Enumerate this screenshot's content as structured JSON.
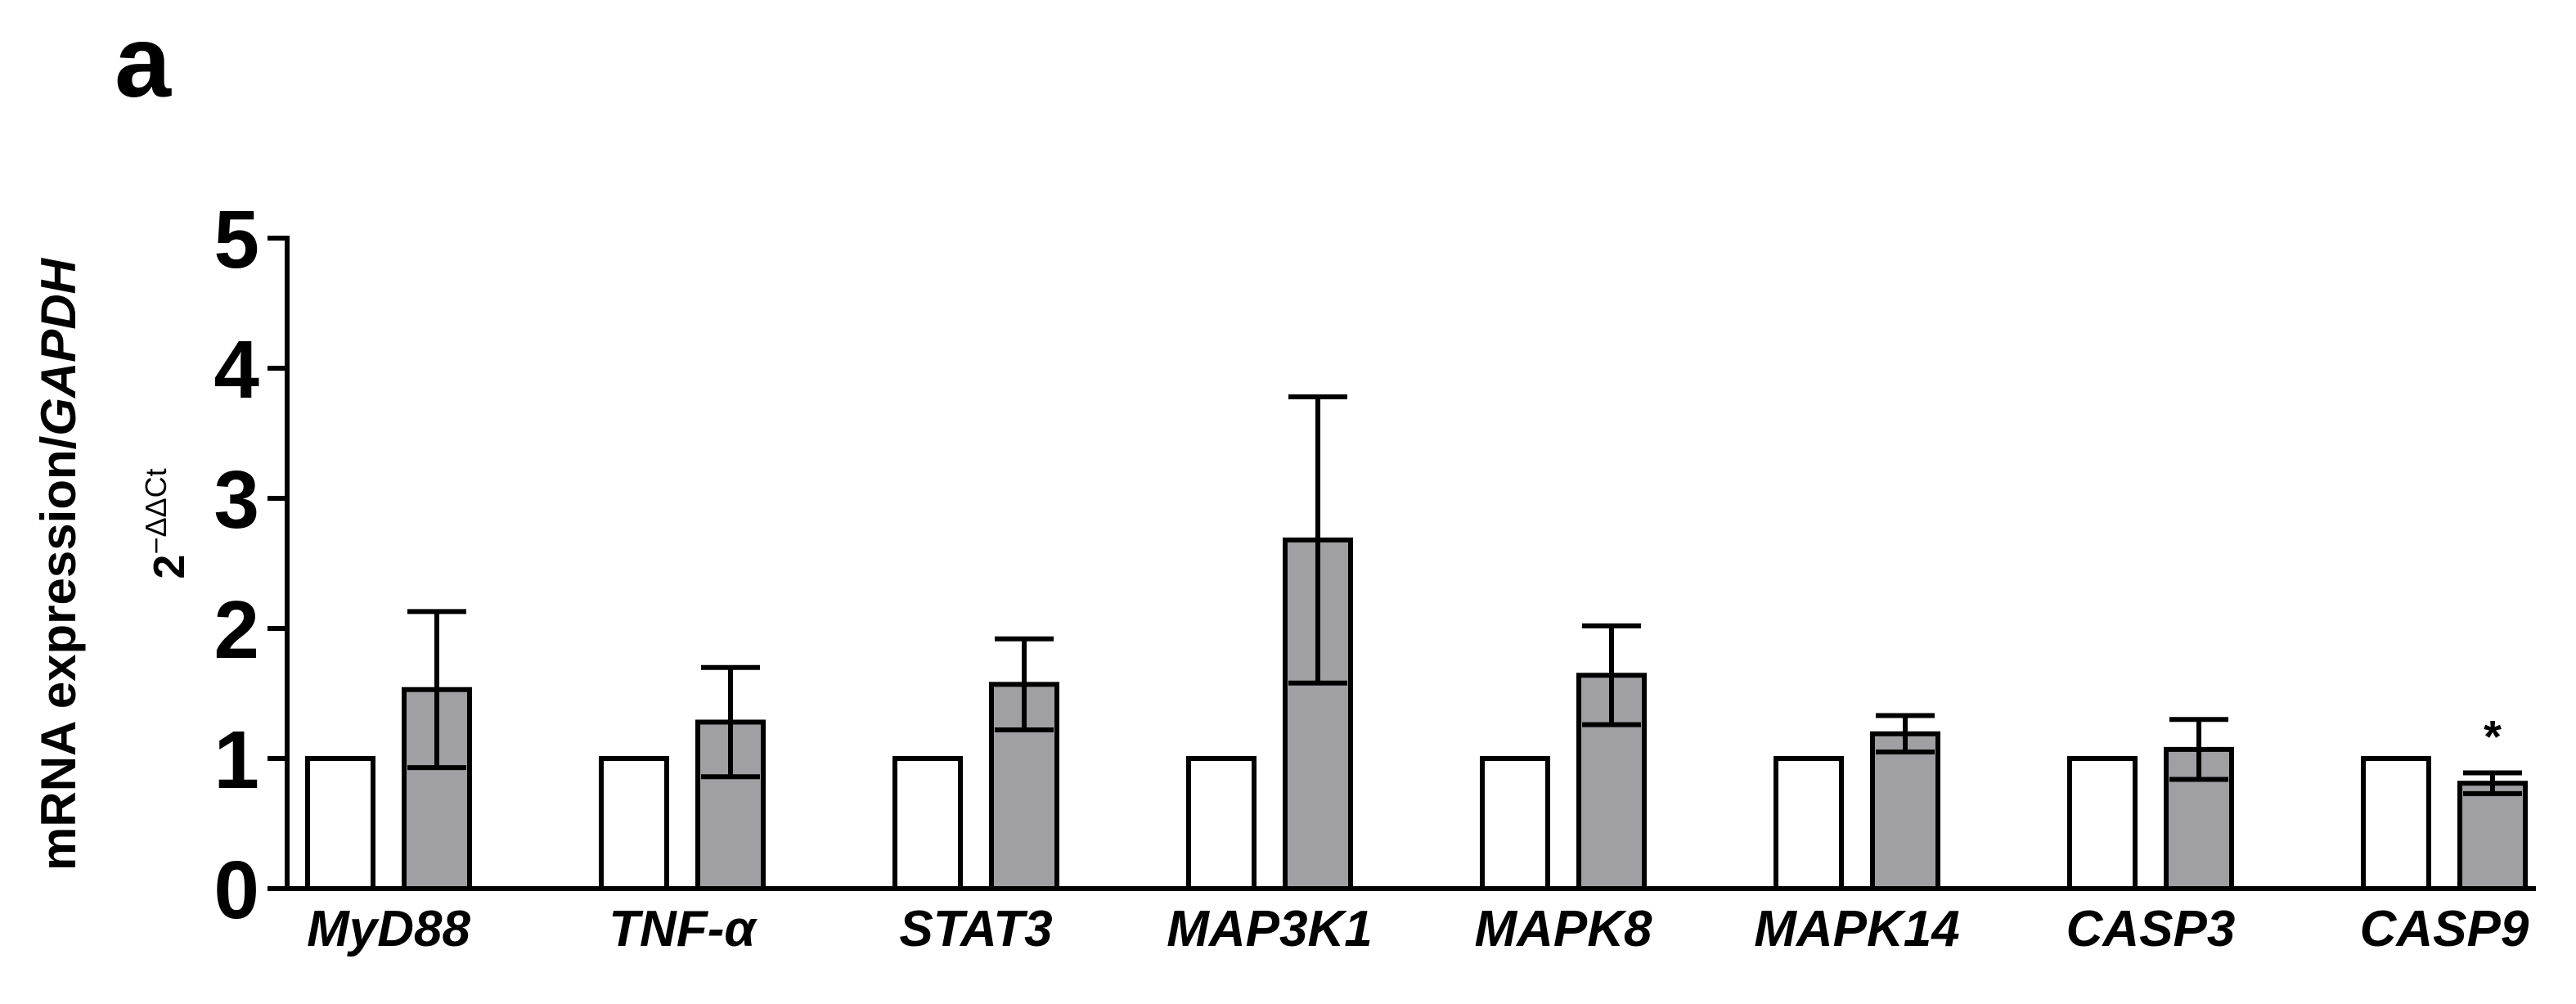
{
  "chart_data": {
    "type": "bar",
    "panel_label": "a",
    "ylabel": "mRNA expression/",
    "ylabel_gene": "GAPDH",
    "ylabel2_base": "2",
    "ylabel2_exp": "−ΔΔCt",
    "categories": [
      "MyD88",
      "TNF-α",
      "STAT3",
      "MAP3K1",
      "MAPK8",
      "MAPK14",
      "CASP3",
      "CASP9"
    ],
    "series": [
      {
        "color": "#ffffff",
        "values": [
          1,
          1,
          1,
          1,
          1,
          1,
          1,
          1
        ]
      },
      {
        "color": "#a0a0a4",
        "values": [
          1.53,
          1.28,
          1.57,
          2.68,
          1.64,
          1.19,
          1.07,
          0.81
        ],
        "errors": [
          0.6,
          0.42,
          0.35,
          1.1,
          0.38,
          0.14,
          0.23,
          0.08
        ]
      }
    ],
    "annotation": "*",
    "ylim": [
      0,
      5
    ],
    "yticks": [
      0,
      1,
      2,
      3,
      4,
      5
    ],
    "grid": false
  }
}
